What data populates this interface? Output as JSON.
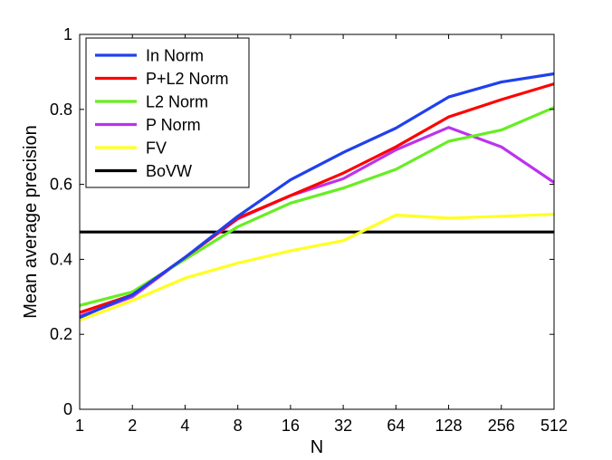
{
  "chart_data": {
    "type": "line",
    "title": "",
    "xlabel": "N",
    "ylabel": "Mean average precision",
    "x_scale": "log2",
    "x": [
      1,
      2,
      4,
      8,
      16,
      32,
      64,
      128,
      256,
      512
    ],
    "xticks": [
      "1",
      "2",
      "4",
      "8",
      "16",
      "32",
      "64",
      "128",
      "256",
      "512"
    ],
    "xlim": [
      1,
      512
    ],
    "ylim": [
      0,
      1
    ],
    "yticks": [
      "0",
      "0.2",
      "0.4",
      "0.6",
      "0.8",
      "1"
    ],
    "ytick_values": [
      0,
      0.2,
      0.4,
      0.6,
      0.8,
      1.0
    ],
    "grid": false,
    "legend_position": "top-left",
    "series": [
      {
        "name": "In Norm",
        "color": "#2040ee",
        "values": [
          0.245,
          0.305,
          0.405,
          0.515,
          0.612,
          0.685,
          0.75,
          0.833,
          0.873,
          0.895
        ]
      },
      {
        "name": "P+L2 Norm",
        "color": "#ff0000",
        "values": [
          0.258,
          0.305,
          0.405,
          0.51,
          0.57,
          0.63,
          0.7,
          0.78,
          0.826,
          0.868
        ]
      },
      {
        "name": "L2 Norm",
        "color": "#66ee22",
        "values": [
          0.277,
          0.313,
          0.4,
          0.487,
          0.55,
          0.59,
          0.64,
          0.715,
          0.745,
          0.805
        ]
      },
      {
        "name": "P Norm",
        "color": "#bb33ee",
        "values": [
          0.248,
          0.3,
          0.405,
          0.508,
          0.57,
          0.615,
          0.692,
          0.752,
          0.7,
          0.605
        ]
      },
      {
        "name": "FV",
        "color": "#ffff22",
        "values": [
          0.238,
          0.29,
          0.35,
          0.39,
          0.423,
          0.45,
          0.518,
          0.51,
          0.515,
          0.52
        ]
      },
      {
        "name": "BoVW",
        "color": "#000000",
        "values": [
          0.473,
          0.473,
          0.473,
          0.473,
          0.473,
          0.473,
          0.473,
          0.473,
          0.473,
          0.473
        ]
      }
    ]
  }
}
